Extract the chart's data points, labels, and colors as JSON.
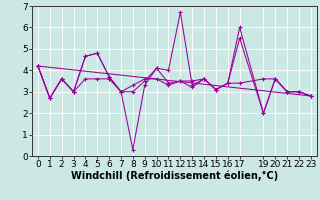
{
  "xlabel": "Windchill (Refroidissement éolien,°C)",
  "bg_color": "#cce8e4",
  "line_color": "#990099",
  "xlim": [
    -0.5,
    23.5
  ],
  "ylim": [
    0,
    7
  ],
  "xticks": [
    0,
    1,
    2,
    3,
    4,
    5,
    6,
    7,
    8,
    9,
    10,
    11,
    12,
    13,
    14,
    15,
    16,
    17,
    19,
    20,
    21,
    22,
    23
  ],
  "yticks": [
    0,
    1,
    2,
    3,
    4,
    5,
    6,
    7
  ],
  "series_spiky_x": [
    0,
    1,
    2,
    3,
    4,
    5,
    6,
    7,
    8,
    9,
    10,
    11,
    12,
    13,
    14,
    15,
    16,
    17,
    19,
    20,
    21,
    22,
    23
  ],
  "series_spiky_y": [
    4.2,
    2.7,
    3.6,
    3.0,
    4.65,
    4.8,
    3.7,
    3.0,
    0.3,
    3.3,
    4.1,
    4.0,
    6.7,
    3.3,
    3.6,
    3.1,
    3.4,
    5.5,
    2.0,
    3.6,
    3.0,
    3.0,
    2.8
  ],
  "series_peak17_x": [
    0,
    1,
    2,
    3,
    4,
    5,
    6,
    7,
    8,
    9,
    10,
    11,
    12,
    13,
    14,
    15,
    16,
    17,
    19,
    20,
    21,
    22,
    23
  ],
  "series_peak17_y": [
    4.2,
    2.7,
    3.6,
    3.0,
    4.65,
    4.8,
    3.7,
    3.0,
    3.0,
    3.5,
    4.1,
    3.4,
    3.5,
    3.2,
    3.6,
    3.1,
    3.4,
    6.0,
    2.0,
    3.6,
    3.0,
    3.0,
    2.8
  ],
  "series_flat_x": [
    0,
    1,
    2,
    3,
    4,
    5,
    6,
    7,
    8,
    9,
    10,
    11,
    12,
    13,
    14,
    15,
    16,
    17,
    19,
    20,
    21,
    22,
    23
  ],
  "series_flat_y": [
    4.2,
    2.7,
    3.6,
    3.0,
    3.6,
    3.6,
    3.6,
    3.0,
    3.3,
    3.6,
    3.6,
    3.3,
    3.5,
    3.5,
    3.6,
    3.1,
    3.4,
    3.4,
    3.6,
    3.6,
    3.0,
    3.0,
    2.8
  ],
  "trend_x": [
    0,
    23
  ],
  "trend_y": [
    4.2,
    2.8
  ],
  "font_size": 6.5
}
